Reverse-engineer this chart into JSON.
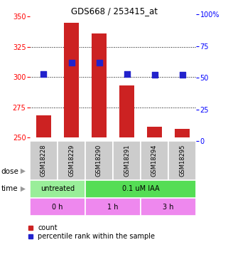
{
  "title": "GDS668 / 253415_at",
  "samples": [
    "GSM18228",
    "GSM18229",
    "GSM18290",
    "GSM18291",
    "GSM18294",
    "GSM18295"
  ],
  "count_values": [
    268,
    345,
    336,
    293,
    259,
    257
  ],
  "count_base": 250,
  "percentile_values": [
    53,
    62,
    62,
    53,
    52,
    52
  ],
  "ylim_left": [
    247,
    352
  ],
  "ylim_right": [
    0,
    100
  ],
  "yticks_left": [
    250,
    275,
    300,
    325,
    350
  ],
  "yticks_right": [
    0,
    25,
    50,
    75,
    100
  ],
  "ytick_labels_right": [
    "0",
    "25",
    "50",
    "75",
    "100%"
  ],
  "bar_color": "#cc2222",
  "dot_color": "#2222cc",
  "gsm_bg_color": "#cccccc",
  "dose_colors": [
    "#99ee99",
    "#55dd55"
  ],
  "time_color": "#ee88ee",
  "dose_info": [
    [
      0,
      2,
      "untreated"
    ],
    [
      2,
      6,
      "0.1 uM IAA"
    ]
  ],
  "time_info": [
    [
      0,
      2,
      "0 h"
    ],
    [
      2,
      4,
      "1 h"
    ],
    [
      4,
      6,
      "3 h"
    ]
  ],
  "dose_row_label": "dose",
  "time_row_label": "time",
  "legend_count_label": "count",
  "legend_pct_label": "percentile rank within the sample",
  "bar_width": 0.55,
  "dot_size": 30,
  "gridlines": [
    275,
    300,
    325
  ]
}
